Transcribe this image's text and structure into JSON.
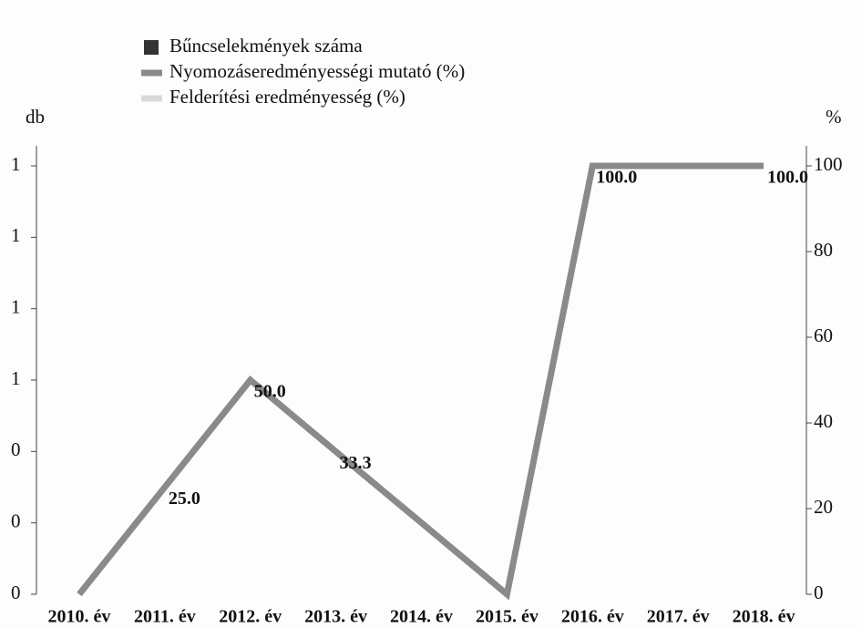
{
  "chart_data": {
    "type": "bar-line",
    "ylabel": "db",
    "y2label": "%",
    "categories": [
      "2010. év",
      "2011. év",
      "2012. év",
      "2013. év",
      "2014. év",
      "2015. év",
      "2016. év",
      "2017. év",
      "2018. év"
    ],
    "series": [
      {
        "name": "Bűncselekmények száma",
        "type": "bar",
        "color": "#333333",
        "values": [
          null,
          null,
          null,
          null,
          null,
          null,
          null,
          null,
          null
        ]
      },
      {
        "name": "Nyomozáseredményességi mutató (%)",
        "type": "line",
        "axis": "y2",
        "color": "#8a8a8a",
        "values": [
          0,
          25,
          50,
          33.3,
          16.7,
          0,
          100,
          100,
          100
        ],
        "value_labels": [
          null,
          "25.0",
          "50.0",
          "33.3",
          null,
          null,
          "100.0",
          null,
          "100.0"
        ]
      },
      {
        "name": "Felderítési eredményesség (%)",
        "type": "line",
        "axis": "y2",
        "color": "#d9d9d9",
        "values": [
          null,
          null,
          null,
          null,
          null,
          null,
          null,
          null,
          null
        ]
      }
    ],
    "ylim": [
      0,
      1.32
    ],
    "yticks": [
      {
        "value": 0,
        "label": "0"
      },
      {
        "value": 0.2,
        "label": "0"
      },
      {
        "value": 0.4,
        "label": "0"
      },
      {
        "value": 0.6,
        "label": "1"
      },
      {
        "value": 0.8,
        "label": "1"
      },
      {
        "value": 1.0,
        "label": "1"
      },
      {
        "value": 1.2,
        "label": "1"
      }
    ],
    "y2lim": [
      0,
      110
    ],
    "y2ticks": [
      0,
      20,
      40,
      60,
      80,
      100
    ],
    "legend": "top-left"
  }
}
